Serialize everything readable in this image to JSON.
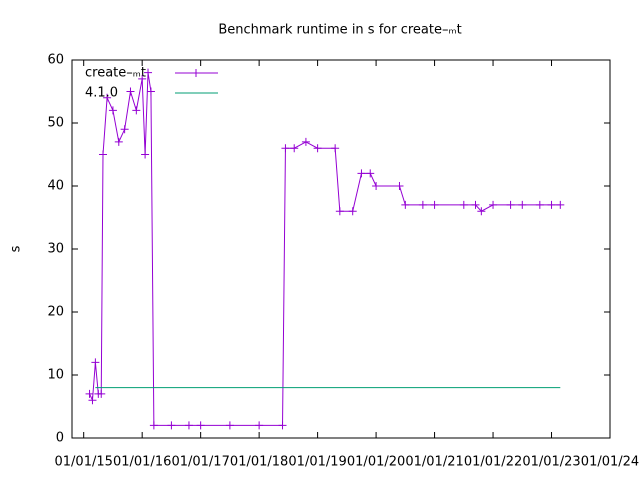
{
  "chart_data": {
    "type": "line",
    "title": "Benchmark runtime in s for create–ₘt",
    "ylabel": "s",
    "xlim": [
      2014.8,
      2024.0
    ],
    "ylim": [
      0,
      60
    ],
    "yticks": [
      0,
      10,
      20,
      30,
      40,
      50,
      60
    ],
    "xticks": [
      {
        "value": 2015,
        "label": "01/01/15"
      },
      {
        "value": 2016,
        "label": "01/01/16"
      },
      {
        "value": 2017,
        "label": "01/01/17"
      },
      {
        "value": 2018,
        "label": "01/01/18"
      },
      {
        "value": 2019,
        "label": "01/01/19"
      },
      {
        "value": 2020,
        "label": "01/01/20"
      },
      {
        "value": 2021,
        "label": "01/01/21"
      },
      {
        "value": 2022,
        "label": "01/01/22"
      },
      {
        "value": 2023,
        "label": "01/01/23"
      },
      {
        "value": 2024,
        "label": "01/01/24"
      }
    ],
    "legend": "top-left",
    "series": [
      {
        "name": "create–ₘt",
        "color": "#9400d3",
        "markers": true,
        "x": [
          2015.1,
          2015.15,
          2015.2,
          2015.25,
          2015.3,
          2015.33,
          2015.4,
          2015.5,
          2015.6,
          2015.7,
          2015.8,
          2015.9,
          2016.0,
          2016.05,
          2016.1,
          2016.15,
          2016.2,
          2016.5,
          2016.8,
          2017.0,
          2017.5,
          2018.0,
          2018.4,
          2018.45,
          2018.6,
          2018.8,
          2019.0,
          2019.3,
          2019.38,
          2019.6,
          2019.75,
          2019.9,
          2020.0,
          2020.4,
          2020.5,
          2020.8,
          2021.0,
          2021.5,
          2021.7,
          2021.8,
          2022.0,
          2022.3,
          2022.5,
          2022.8,
          2023.0,
          2023.15
        ],
        "values": [
          7,
          6,
          12,
          7,
          7,
          45,
          54,
          52,
          47,
          49,
          55,
          52,
          57,
          45,
          58,
          55,
          2,
          2,
          2,
          2,
          2,
          2,
          2,
          46,
          46,
          47,
          46,
          46,
          36,
          36,
          42,
          42,
          40,
          40,
          37,
          37,
          37,
          37,
          37,
          36,
          37,
          37,
          37,
          37,
          37,
          37
        ]
      },
      {
        "name": "4.1.0",
        "color": "#009e73",
        "markers": false,
        "x": [
          2015.2,
          2023.15
        ],
        "values": [
          8,
          8
        ]
      }
    ]
  }
}
